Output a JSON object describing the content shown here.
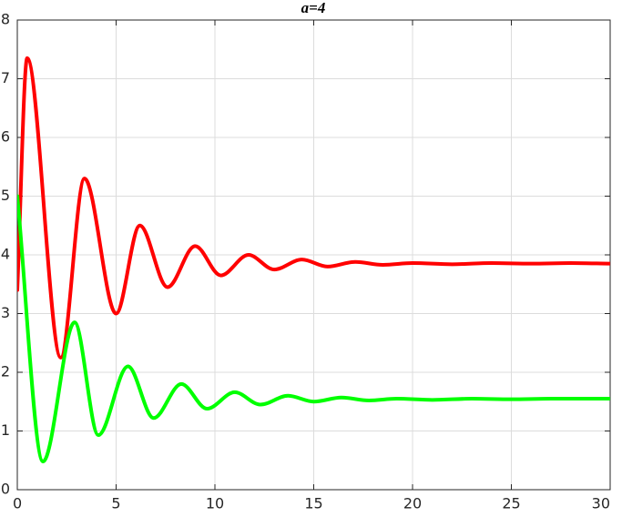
{
  "chart_data": {
    "type": "line",
    "title": "a=4",
    "series": [
      {
        "color": "#ff0000",
        "x": [
          0,
          0.5,
          2.2,
          3.4,
          5.0,
          6.2,
          7.6,
          9.0,
          10.3,
          11.7,
          13.0,
          14.4,
          15.7,
          17.1,
          18.5,
          20,
          22,
          24,
          26,
          28,
          30
        ],
        "values": [
          3.4,
          7.35,
          2.25,
          5.3,
          3.0,
          4.5,
          3.45,
          4.15,
          3.65,
          4.0,
          3.75,
          3.92,
          3.8,
          3.88,
          3.83,
          3.86,
          3.84,
          3.86,
          3.85,
          3.86,
          3.85
        ]
      },
      {
        "color": "#00ff00",
        "x": [
          0,
          1.3,
          2.9,
          4.1,
          5.6,
          6.9,
          8.3,
          9.6,
          11.0,
          12.3,
          13.7,
          15.0,
          16.4,
          17.8,
          19.2,
          21,
          23,
          25,
          27,
          30
        ],
        "values": [
          5.0,
          0.48,
          2.85,
          0.93,
          2.1,
          1.22,
          1.8,
          1.38,
          1.66,
          1.45,
          1.6,
          1.5,
          1.57,
          1.52,
          1.55,
          1.53,
          1.55,
          1.54,
          1.55,
          1.55
        ]
      }
    ],
    "xlim": [
      0,
      30
    ],
    "xticks": [
      0,
      5,
      10,
      15,
      20,
      25,
      30
    ],
    "ylim": [
      0,
      8
    ],
    "yticks": [
      0,
      1,
      2,
      3,
      4,
      5,
      6,
      7,
      8
    ],
    "grid": true
  }
}
